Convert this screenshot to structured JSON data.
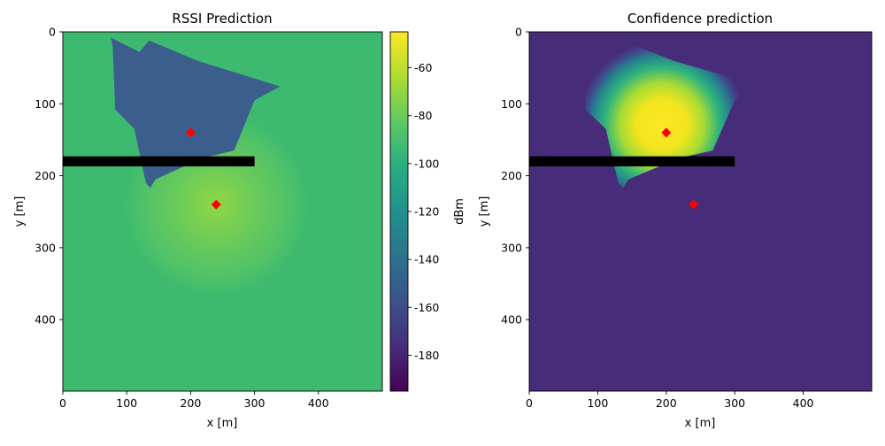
{
  "chart_data": [
    {
      "type": "heatmap",
      "title": "RSSI Prediction",
      "xlabel": "x [m]",
      "ylabel": "y [m]",
      "xlim": [
        0,
        500
      ],
      "ylim": [
        500,
        0
      ],
      "xticks": [
        "0",
        "100",
        "200",
        "300",
        "400"
      ],
      "yticks": [
        "0",
        "100",
        "200",
        "300",
        "400"
      ],
      "colorscale": "viridis",
      "background_value_dBm": -92,
      "colorbar": {
        "label": "dBm",
        "range": [
          -195,
          -45
        ],
        "ticks": [
          "-60",
          "-80",
          "-100",
          "-120",
          "-140",
          "-160",
          "-180"
        ]
      },
      "bright_center": [
        240,
        240
      ],
      "low_region_value_dBm": -155,
      "low_region_polygon": [
        [
          75,
          8
        ],
        [
          120,
          28
        ],
        [
          135,
          12
        ],
        [
          210,
          40
        ],
        [
          340,
          76
        ],
        [
          300,
          95
        ],
        [
          268,
          165
        ],
        [
          220,
          175
        ],
        [
          145,
          205
        ],
        [
          137,
          217
        ],
        [
          130,
          210
        ],
        [
          125,
          190
        ],
        [
          112,
          135
        ],
        [
          82,
          108
        ],
        [
          78,
          20
        ]
      ],
      "wall": {
        "x": [
          0,
          300
        ],
        "y": [
          173,
          187
        ]
      },
      "markers": [
        {
          "x": 200,
          "y": 140
        },
        {
          "x": 240,
          "y": 240
        }
      ]
    },
    {
      "type": "heatmap",
      "title": "Confidence prediction",
      "xlabel": "x [m]",
      "ylabel": "y [m]",
      "xlim": [
        0,
        500
      ],
      "ylim": [
        500,
        0
      ],
      "xticks": [
        "0",
        "100",
        "200",
        "300",
        "400"
      ],
      "yticks": [
        "0",
        "100",
        "200",
        "300",
        "400"
      ],
      "colorscale": "viridis",
      "background_value": 0.05,
      "high_region_peak": [
        195,
        130
      ],
      "high_region_polygon": [
        [
          75,
          8
        ],
        [
          120,
          28
        ],
        [
          135,
          12
        ],
        [
          210,
          40
        ],
        [
          340,
          76
        ],
        [
          300,
          95
        ],
        [
          268,
          165
        ],
        [
          220,
          175
        ],
        [
          145,
          205
        ],
        [
          137,
          217
        ],
        [
          130,
          210
        ],
        [
          125,
          190
        ],
        [
          112,
          135
        ],
        [
          82,
          108
        ],
        [
          78,
          20
        ]
      ],
      "wall": {
        "x": [
          0,
          300
        ],
        "y": [
          173,
          187
        ]
      },
      "markers": [
        {
          "x": 200,
          "y": 140
        },
        {
          "x": 240,
          "y": 240
        }
      ]
    }
  ],
  "colors": {
    "viridis": [
      "#440154",
      "#472d7b",
      "#3b528b",
      "#2c728e",
      "#21918c",
      "#28ae80",
      "#5ec962",
      "#addc30",
      "#fde725"
    ],
    "marker": "#ff0000",
    "wall": "#000000",
    "rssi_background": "#3dba6f",
    "rssi_center": "#7ed24e",
    "rssi_low_region": "#3c5e8c",
    "conf_background": "#472c7a",
    "conf_peak": "#fde725"
  }
}
